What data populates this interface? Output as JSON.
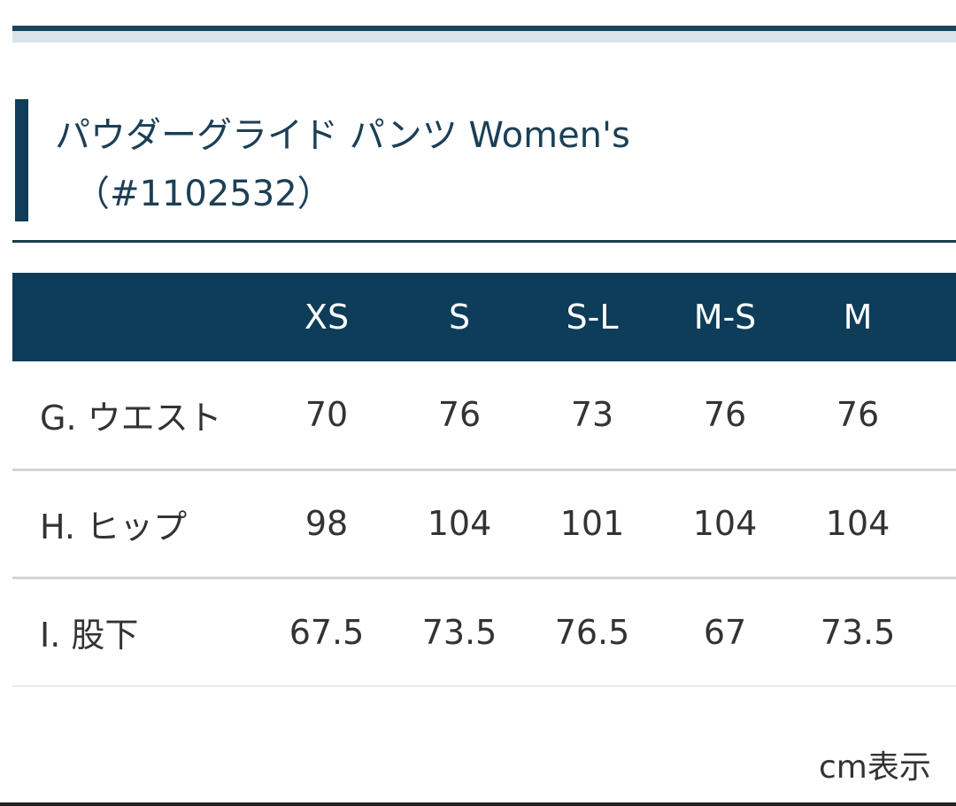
{
  "heading": {
    "line1": "パウダーグライド パンツ Women's",
    "line2": "（#1102532）"
  },
  "table": {
    "columns": [
      "",
      "XS",
      "S",
      "S-L",
      "M-S",
      "M"
    ],
    "rows": [
      {
        "label": "G. ウエスト",
        "values": [
          "70",
          "76",
          "73",
          "76",
          "76"
        ]
      },
      {
        "label": "H. ヒップ",
        "values": [
          "98",
          "104",
          "101",
          "104",
          "104"
        ]
      },
      {
        "label": "I. 股下",
        "values": [
          "67.5",
          "73.5",
          "76.5",
          "67",
          "73.5"
        ]
      }
    ]
  },
  "unit_note": "cm表示",
  "colors": {
    "header_bg": "#0e3d5a",
    "accent": "#17445f"
  }
}
